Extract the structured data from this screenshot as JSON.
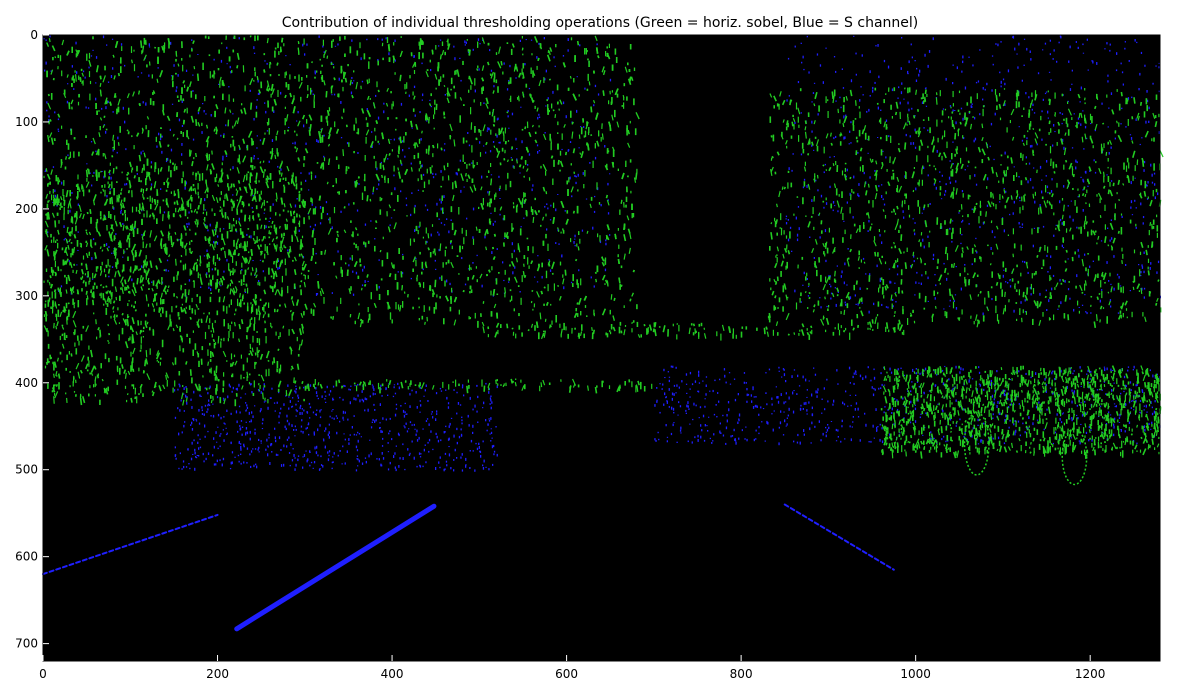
{
  "chart_data": {
    "type": "heatmap",
    "title": "Contribution of individual thresholding operations (Green = horiz. sobel, Blue = S channel)",
    "xlabel": "",
    "ylabel": "",
    "xlim": [
      0,
      1280
    ],
    "ylim": [
      720,
      0
    ],
    "x_ticks": [
      0,
      200,
      400,
      600,
      800,
      1000,
      1200
    ],
    "y_ticks": [
      0,
      100,
      200,
      300,
      400,
      500,
      600,
      700
    ],
    "grid": false,
    "background_color": "#000000",
    "series": [
      {
        "name": "Green = horiz. sobel",
        "color": "#22cc22"
      },
      {
        "name": "Blue = S channel",
        "color": "#1f1fff"
      }
    ],
    "lane_lines": [
      {
        "series": "Blue = S channel",
        "x": [
          222,
          448
        ],
        "y": [
          683,
          542
        ],
        "emphasis": "strong"
      },
      {
        "series": "Blue = S channel",
        "x": [
          850,
          975
        ],
        "y": [
          540,
          615
        ],
        "emphasis": "light"
      },
      {
        "series": "Blue = S channel",
        "x": [
          0,
          200
        ],
        "y": [
          620,
          552
        ],
        "emphasis": "light"
      }
    ],
    "regions": {
      "green_dense": [
        {
          "x": [
            0,
            680
          ],
          "y": [
            0,
            330
          ]
        },
        {
          "x": [
            0,
            300
          ],
          "y": [
            150,
            420
          ]
        },
        {
          "x": [
            830,
            1280
          ],
          "y": [
            60,
            330
          ]
        },
        {
          "x": [
            960,
            1280
          ],
          "y": [
            380,
            480
          ]
        }
      ],
      "blue_dense": [
        {
          "x": [
            0,
            650
          ],
          "y": [
            0,
            300
          ]
        },
        {
          "x": [
            850,
            1280
          ],
          "y": [
            0,
            320
          ]
        },
        {
          "x": [
            700,
            1280
          ],
          "y": [
            380,
            470
          ]
        },
        {
          "x": [
            150,
            520
          ],
          "y": [
            400,
            500
          ]
        }
      ],
      "horizon_line": {
        "x": [
          500,
          1000
        ],
        "y": [
          330,
          345
        ]
      },
      "horizon_row": {
        "x": [
          300,
          700
        ],
        "y": [
          395,
          405
        ]
      },
      "car_blobs": [
        {
          "cx": 1070,
          "cy": 470,
          "rx": 14,
          "ry": 36
        },
        {
          "cx": 1182,
          "cy": 485,
          "rx": 14,
          "ry": 32
        }
      ]
    }
  }
}
